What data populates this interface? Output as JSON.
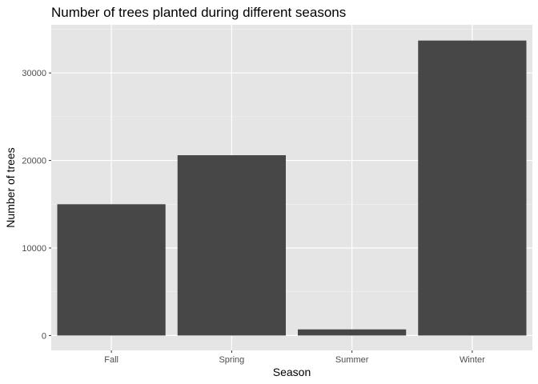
{
  "chart_data": {
    "type": "bar",
    "title": "Number of trees planted during different seasons",
    "xlabel": "Season",
    "ylabel": "Number of trees",
    "categories": [
      "Fall",
      "Spring",
      "Summer",
      "Winter"
    ],
    "values": [
      15000,
      20600,
      700,
      33700
    ],
    "ylim": [
      -1700,
      35500
    ],
    "yticks": [
      0,
      10000,
      20000,
      30000
    ],
    "ytick_labels": [
      "0",
      "10000",
      "20000",
      "30000"
    ],
    "grid": true,
    "legend": "none",
    "colors": {
      "bar": "#474747",
      "panel": "#e5e5e5",
      "grid_major": "#ffffff",
      "grid_minor": "#f2f2f2",
      "tick_label": "#4d4d4d"
    }
  }
}
